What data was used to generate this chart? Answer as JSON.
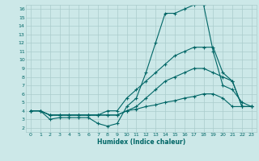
{
  "title": "",
  "xlabel": "Humidex (Indice chaleur)",
  "xlim": [
    -0.5,
    23.5
  ],
  "ylim": [
    1.5,
    16.5
  ],
  "xticks": [
    0,
    1,
    2,
    3,
    4,
    5,
    6,
    7,
    8,
    9,
    10,
    11,
    12,
    13,
    14,
    15,
    16,
    17,
    18,
    19,
    20,
    21,
    22,
    23
  ],
  "yticks": [
    2,
    3,
    4,
    5,
    6,
    7,
    8,
    9,
    10,
    11,
    12,
    13,
    14,
    15,
    16
  ],
  "bg_color": "#cce8e8",
  "grid_color": "#aacccc",
  "line_color": "#006666",
  "lines": [
    {
      "x": [
        0,
        1,
        2,
        3,
        4,
        5,
        6,
        7,
        8,
        9,
        10,
        11,
        12,
        13,
        14,
        15,
        16,
        17,
        18,
        19,
        20,
        21,
        22,
        23
      ],
      "y": [
        4,
        4,
        3,
        3.2,
        3.2,
        3.2,
        3.2,
        2.5,
        2.2,
        2.5,
        4.5,
        5.5,
        8.5,
        12,
        15.5,
        15.5,
        16,
        16.5,
        16.5,
        11,
        7,
        6.5,
        5,
        4.5
      ]
    },
    {
      "x": [
        0,
        1,
        2,
        3,
        4,
        5,
        6,
        7,
        8,
        9,
        10,
        11,
        12,
        13,
        14,
        15,
        16,
        17,
        18,
        19,
        20,
        21,
        22,
        23
      ],
      "y": [
        4,
        4,
        3.5,
        3.5,
        3.5,
        3.5,
        3.5,
        3.5,
        4.0,
        4.0,
        5.5,
        6.5,
        7.5,
        8.5,
        9.5,
        10.5,
        11.0,
        11.5,
        11.5,
        11.5,
        8.5,
        7.5,
        4.5,
        4.5
      ]
    },
    {
      "x": [
        0,
        1,
        2,
        3,
        4,
        5,
        6,
        7,
        8,
        9,
        10,
        11,
        12,
        13,
        14,
        15,
        16,
        17,
        18,
        19,
        20,
        21,
        22,
        23
      ],
      "y": [
        4,
        4,
        3.5,
        3.5,
        3.5,
        3.5,
        3.5,
        3.5,
        3.5,
        3.5,
        4,
        4.5,
        5.5,
        6.5,
        7.5,
        8.0,
        8.5,
        9.0,
        9.0,
        8.5,
        8.0,
        7.5,
        4.5,
        4.5
      ]
    },
    {
      "x": [
        0,
        1,
        2,
        3,
        4,
        5,
        6,
        7,
        8,
        9,
        10,
        11,
        12,
        13,
        14,
        15,
        16,
        17,
        18,
        19,
        20,
        21,
        22,
        23
      ],
      "y": [
        4,
        4,
        3.5,
        3.5,
        3.5,
        3.5,
        3.5,
        3.5,
        3.5,
        3.5,
        4,
        4.2,
        4.5,
        4.7,
        5.0,
        5.2,
        5.5,
        5.7,
        6.0,
        6.0,
        5.5,
        4.5,
        4.5,
        4.5
      ]
    }
  ]
}
